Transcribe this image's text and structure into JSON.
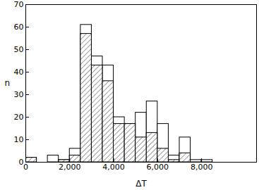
{
  "chart_data": {
    "type": "histogram",
    "x_label": "ΔT",
    "y_label": "n",
    "bins": [
      0,
      500,
      1000,
      1500,
      2000,
      2500,
      3000,
      3500,
      4000,
      4500,
      5000,
      5500,
      6000,
      6500,
      7000,
      7500,
      8000,
      8500
    ],
    "series": [
      {
        "color": "#ffffff",
        "values": [
          2,
          0,
          3,
          1,
          6,
          61,
          47,
          43,
          20,
          17,
          22,
          27,
          17,
          3,
          11,
          1,
          1
        ]
      },
      {
        "color": "#555555",
        "values": [
          2,
          0,
          0,
          1,
          3,
          57,
          43,
          36,
          17,
          17,
          11,
          13,
          6,
          1,
          4,
          0,
          0
        ]
      }
    ],
    "xlim": [
      0,
      10500
    ],
    "xticks": [
      0,
      2000,
      4000,
      6000,
      8000
    ],
    "ylim": [
      0,
      70
    ],
    "yticks": [
      0,
      10,
      20,
      30,
      40,
      50,
      60,
      70
    ],
    "grid": false
  }
}
